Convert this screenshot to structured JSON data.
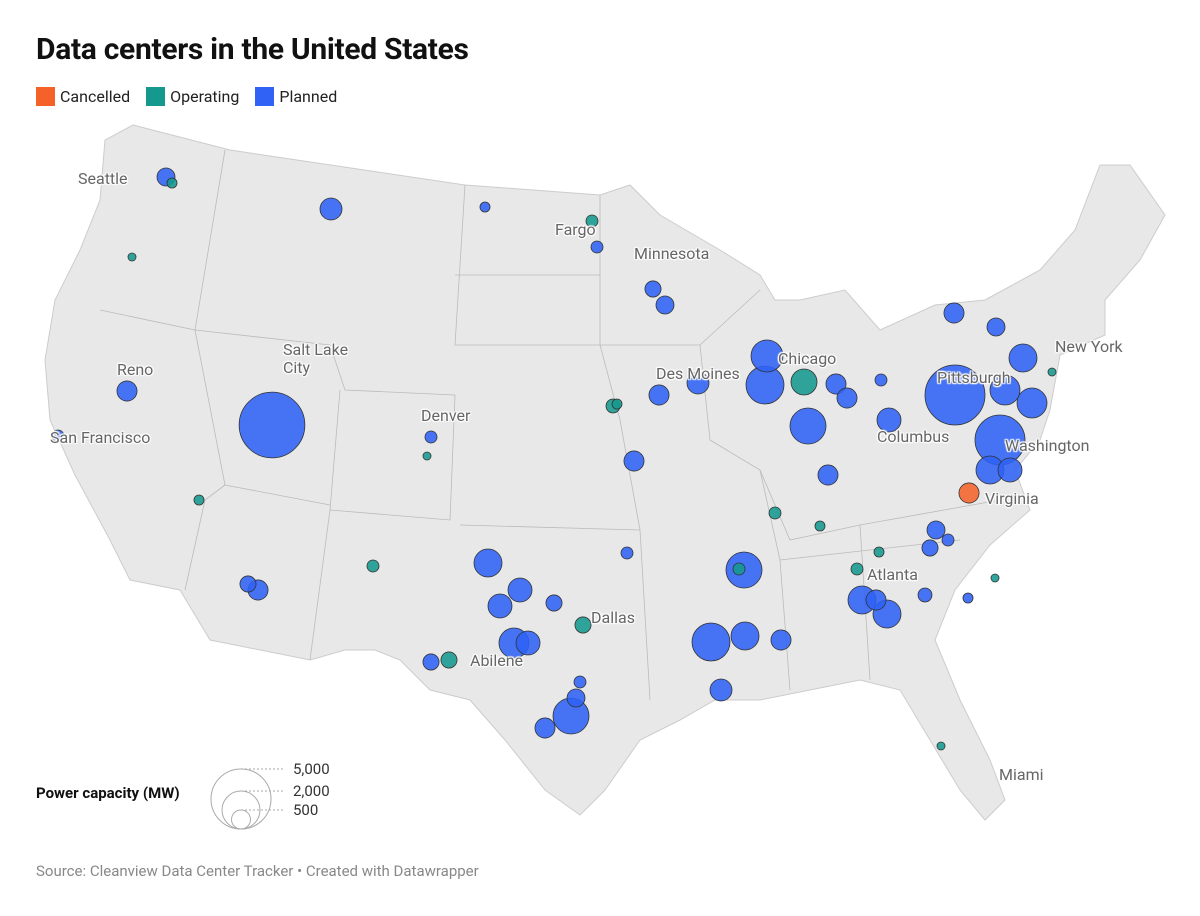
{
  "header": {
    "title": "Data centers in the United States"
  },
  "legend": [
    {
      "label": "Cancelled",
      "color": "#f4622a",
      "capacities": [
        560
      ]
    },
    {
      "label": "Operating",
      "color": "#15998e",
      "capacities": [
        940,
        360,
        360,
        270,
        200,
        200,
        140,
        140,
        200,
        200,
        140,
        140,
        200,
        140,
        90,
        90,
        90,
        90,
        90
      ]
    },
    {
      "label": "Planned",
      "color": "#2f62f5",
      "capacities": [
        6000,
        5000,
        450,
        670,
        140,
        200,
        360,
        450,
        1420,
        2000,
        1800,
        560,
        560,
        560,
        670,
        560,
        800,
        200,
        560,
        450,
        1090,
        1250,
        1250,
        3470,
        1090,
        800,
        450,
        360,
        200,
        1090,
        1090,
        560,
        270,
        140,
        560,
        1800,
        2000,
        1090,
        560,
        670,
        1090,
        800,
        800,
        360,
        200,
        1250,
        800,
        1800,
        450,
        560,
        200,
        360,
        560,
        360,
        560,
        200,
        200
      ]
    }
  ],
  "cities": [
    "Seattle",
    "Fargo",
    "Minnesota",
    "Salt Lake\nCity",
    "Reno",
    "San Francisco",
    "Denver",
    "Des Moines",
    "Chicago",
    "Pittsburgh",
    "New York",
    "Columbus",
    "Washington",
    "Virginia",
    "Atlanta",
    "Dallas",
    "Abilene",
    "Miami"
  ],
  "size_legend": {
    "title": "Power capacity (MW)",
    "values": [
      {
        "value": 5000,
        "label": "5,000"
      },
      {
        "value": 2000,
        "label": "2,000"
      },
      500
    ]
  },
  "footer": {
    "source": "Source: Cleanview Data Center Tracker • Created with Datawrapper"
  }
}
